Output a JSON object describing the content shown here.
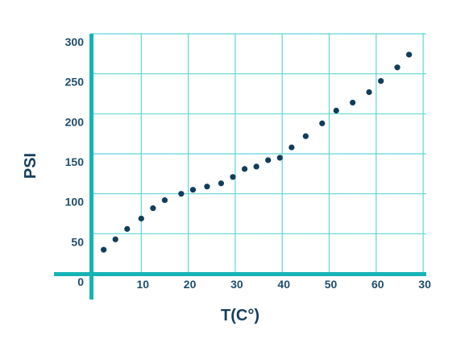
{
  "chart_data": {
    "type": "scatter",
    "title": "",
    "xlabel": "T(C°)",
    "ylabel": "PSI",
    "x_tick_labels": [
      "10",
      "20",
      "30",
      "40",
      "50",
      "60",
      "30"
    ],
    "y_tick_labels": [
      "0",
      "50",
      "100",
      "150",
      "200",
      "250",
      "300"
    ],
    "ylim": [
      0,
      300
    ],
    "grid": true,
    "colors": {
      "points": "#0f3d5c",
      "grid": "#5fd4d8",
      "axis": "#16b3b6",
      "text": "#1f4e6e"
    },
    "series": [
      {
        "x": [
          2,
          4.5,
          7,
          10,
          12.5,
          15,
          18.5,
          21,
          24,
          27,
          29.5,
          32,
          34.5,
          37,
          39.5,
          42,
          45,
          48.5,
          51.5,
          55,
          58.5,
          61,
          64.5,
          67
        ],
        "y": [
          30,
          43,
          56,
          69,
          82,
          92,
          100,
          105,
          109,
          113,
          121,
          131,
          134,
          142,
          145,
          158,
          172,
          188,
          204,
          214,
          227,
          241,
          258,
          274
        ]
      }
    ]
  }
}
